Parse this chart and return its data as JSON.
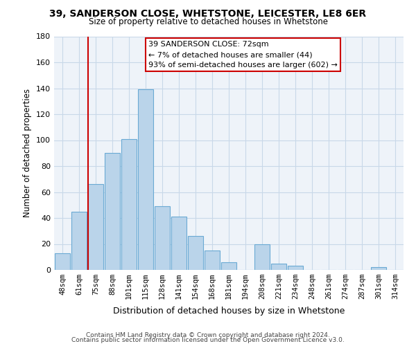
{
  "title1": "39, SANDERSON CLOSE, WHETSTONE, LEICESTER, LE8 6ER",
  "title2": "Size of property relative to detached houses in Whetstone",
  "xlabel": "Distribution of detached houses by size in Whetstone",
  "ylabel": "Number of detached properties",
  "bar_labels": [
    "48sqm",
    "61sqm",
    "75sqm",
    "88sqm",
    "101sqm",
    "115sqm",
    "128sqm",
    "141sqm",
    "154sqm",
    "168sqm",
    "181sqm",
    "194sqm",
    "208sqm",
    "221sqm",
    "234sqm",
    "248sqm",
    "261sqm",
    "274sqm",
    "287sqm",
    "301sqm",
    "314sqm"
  ],
  "bar_values": [
    13,
    45,
    66,
    90,
    101,
    139,
    49,
    41,
    26,
    15,
    6,
    0,
    20,
    5,
    3,
    0,
    0,
    0,
    0,
    2,
    0
  ],
  "bar_color": "#bad4ea",
  "bar_edge_color": "#6aaad4",
  "vline_x": 2,
  "vline_color": "#cc0000",
  "ylim": [
    0,
    180
  ],
  "yticks": [
    0,
    20,
    40,
    60,
    80,
    100,
    120,
    140,
    160,
    180
  ],
  "annotation_title": "39 SANDERSON CLOSE: 72sqm",
  "annotation_line1": "← 7% of detached houses are smaller (44)",
  "annotation_line2": "93% of semi-detached houses are larger (602) →",
  "annotation_box_color": "#ffffff",
  "annotation_box_edge": "#cc0000",
  "footer1": "Contains HM Land Registry data © Crown copyright and database right 2024.",
  "footer2": "Contains public sector information licensed under the Open Government Licence v3.0."
}
